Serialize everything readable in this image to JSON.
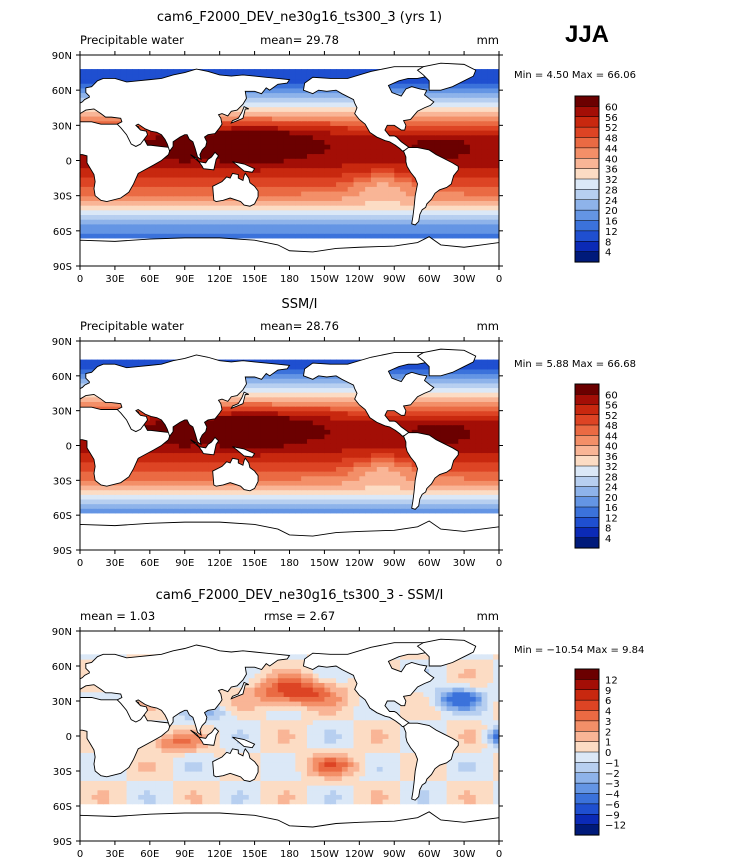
{
  "figure": {
    "season": "JJA",
    "common_x_ticks": [
      "0",
      "30E",
      "60E",
      "90E",
      "120E",
      "150E",
      "180",
      "150W",
      "120W",
      "90W",
      "60W",
      "30W",
      "0"
    ],
    "common_y_ticks": [
      "90N",
      "60N",
      "30N",
      "0",
      "30S",
      "60S",
      "90S"
    ]
  },
  "chart_data": [
    {
      "type": "heatmap",
      "title": "cam6_F2000_DEV_ne30g16_ts300_3 (yrs 1)",
      "left_label": "Precipitable water",
      "center_label": "mean=   29.78",
      "right_label": "mm",
      "minmax_text": "Min =    4.50  Max =   66.06",
      "min": 4.5,
      "max": 66.06,
      "mean": 29.78,
      "x_range": [
        0,
        360
      ],
      "y_range": [
        -90,
        90
      ],
      "colorbar": {
        "levels": [
          "60",
          "56",
          "52",
          "48",
          "44",
          "40",
          "36",
          "32",
          "28",
          "24",
          "20",
          "16",
          "12",
          "8",
          "4"
        ],
        "colors": [
          "#6b0000",
          "#a30e06",
          "#c8280f",
          "#dd4424",
          "#ea6a43",
          "#f38f68",
          "#f9b596",
          "#fcdcc4",
          "#dbe8f7",
          "#b7cff0",
          "#8eb3ea",
          "#6495e4",
          "#3b72db",
          "#1f4fd0",
          "#0b2ab6",
          "#001a7a"
        ]
      }
    },
    {
      "type": "heatmap",
      "title": "SSM/I",
      "left_label": "Precipitable water",
      "center_label": "mean=   28.76",
      "right_label": "mm",
      "minmax_text": "Min =    5.88  Max =   66.68",
      "min": 5.88,
      "max": 66.68,
      "mean": 28.76,
      "x_range": [
        0,
        360
      ],
      "y_range": [
        -90,
        90
      ],
      "colorbar": {
        "levels": [
          "60",
          "56",
          "52",
          "48",
          "44",
          "40",
          "36",
          "32",
          "28",
          "24",
          "20",
          "16",
          "12",
          "8",
          "4"
        ],
        "colors": [
          "#6b0000",
          "#a30e06",
          "#c8280f",
          "#dd4424",
          "#ea6a43",
          "#f38f68",
          "#f9b596",
          "#fcdcc4",
          "#dbe8f7",
          "#b7cff0",
          "#8eb3ea",
          "#6495e4",
          "#3b72db",
          "#1f4fd0",
          "#0b2ab6",
          "#001a7a"
        ]
      }
    },
    {
      "type": "heatmap",
      "title": "cam6_F2000_DEV_ne30g16_ts300_3 - SSM/I",
      "left_label": "mean =    1.03",
      "center_label": "rmse =    2.67",
      "right_label": "mm",
      "minmax_text": "Min = −10.54  Max =    9.84",
      "min": -10.54,
      "max": 9.84,
      "mean": 1.03,
      "rmse": 2.67,
      "x_range": [
        0,
        360
      ],
      "y_range": [
        -90,
        90
      ],
      "colorbar": {
        "levels": [
          "12",
          "9",
          "6",
          "4",
          "3",
          "2",
          "1",
          "0",
          "−1",
          "−2",
          "−3",
          "−4",
          "−6",
          "−9",
          "−12"
        ],
        "colors": [
          "#6b0000",
          "#a30e06",
          "#c8280f",
          "#dd4424",
          "#ea6a43",
          "#f38f68",
          "#f9b596",
          "#fcdcc4",
          "#dbe8f7",
          "#b7cff0",
          "#8eb3ea",
          "#6495e4",
          "#3b72db",
          "#1f4fd0",
          "#0b2ab6",
          "#001a7a"
        ]
      }
    }
  ]
}
